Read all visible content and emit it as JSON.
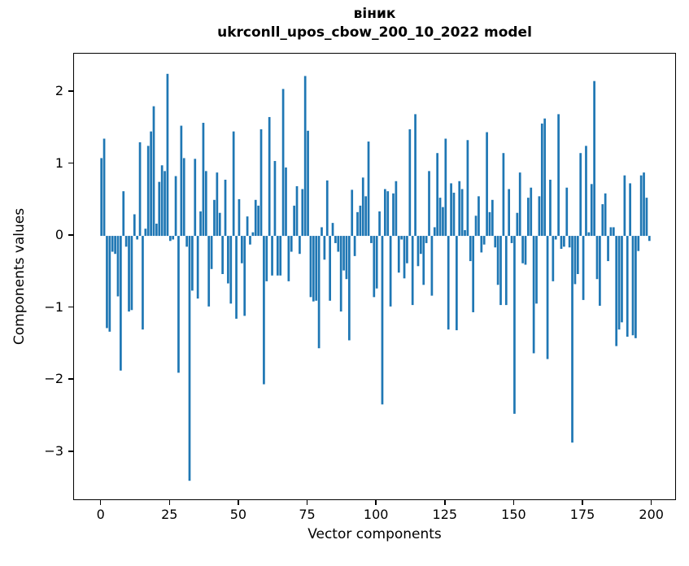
{
  "chart_data": {
    "type": "bar",
    "title": "віник",
    "subtitle": "ukrconll_upos_cbow_200_10_2022 model",
    "xlabel": "Vector components",
    "ylabel": "Components values",
    "bar_color": "#1f77b4",
    "n_components": 200,
    "x_start": 0,
    "xlim": [
      -9.95,
      208.95
    ],
    "ylim": [
      -3.68,
      2.53
    ],
    "bar_width": 0.8,
    "grid": "off",
    "legend": "none",
    "y_ticks": [
      {
        "v": 2,
        "label": "2"
      },
      {
        "v": 1,
        "label": "1"
      },
      {
        "v": 0,
        "label": "0"
      },
      {
        "v": -1,
        "label": "−1"
      },
      {
        "v": -2,
        "label": "−2"
      },
      {
        "v": -3,
        "label": "−3"
      }
    ],
    "x_ticks": [
      {
        "v": 0,
        "label": "0"
      },
      {
        "v": 25,
        "label": "25"
      },
      {
        "v": 50,
        "label": "50"
      },
      {
        "v": 75,
        "label": "75"
      },
      {
        "v": 100,
        "label": "100"
      },
      {
        "v": 125,
        "label": "125"
      },
      {
        "v": 150,
        "label": "150"
      },
      {
        "v": 175,
        "label": "175"
      },
      {
        "v": 200,
        "label": "200"
      }
    ],
    "values": [
      1.08,
      1.35,
      -1.28,
      -1.33,
      -0.22,
      -0.25,
      -0.84,
      -1.87,
      0.62,
      -0.15,
      -1.05,
      -1.03,
      0.3,
      -0.05,
      1.3,
      -1.3,
      0.1,
      1.25,
      1.45,
      1.8,
      0.17,
      0.75,
      0.98,
      0.9,
      2.25,
      -0.07,
      -0.05,
      0.83,
      -1.9,
      1.53,
      1.08,
      -0.15,
      -3.4,
      -0.76,
      1.07,
      -0.87,
      0.34,
      1.57,
      0.9,
      -0.98,
      -0.46,
      0.5,
      0.88,
      0.32,
      -0.53,
      0.78,
      -0.66,
      -0.94,
      1.45,
      -1.15,
      0.51,
      -0.38,
      -1.11,
      0.27,
      -0.12,
      0.05,
      0.5,
      0.42,
      1.48,
      -2.06,
      -0.63,
      1.65,
      -0.55,
      1.04,
      -0.55,
      -0.55,
      2.04,
      0.95,
      -0.63,
      -0.22,
      0.42,
      0.69,
      -0.25,
      0.65,
      2.22,
      1.46,
      -0.85,
      -0.91,
      -0.9,
      -1.56,
      0.12,
      -0.33,
      0.77,
      -0.9,
      0.18,
      -0.1,
      -0.22,
      -1.05,
      -0.48,
      -0.6,
      -1.45,
      0.64,
      -0.28,
      0.33,
      0.42,
      0.81,
      0.55,
      1.31,
      -0.1,
      -0.85,
      -0.73,
      0.34,
      -2.34,
      0.65,
      0.62,
      -0.98,
      0.59,
      0.76,
      -0.51,
      -0.05,
      -0.59,
      -0.38,
      1.48,
      -0.96,
      1.69,
      -0.42,
      -0.25,
      -0.68,
      -0.1,
      0.9,
      -0.83,
      0.12,
      1.15,
      0.53,
      0.4,
      1.35,
      -1.3,
      0.73,
      0.6,
      -1.31,
      0.76,
      0.65,
      0.08,
      1.33,
      -0.35,
      -1.06,
      0.28,
      0.55,
      -0.23,
      -0.12,
      1.44,
      0.33,
      0.5,
      -0.16,
      -0.68,
      -0.96,
      1.15,
      -0.96,
      0.65,
      -0.1,
      -2.47,
      0.32,
      0.88,
      -0.38,
      -0.4,
      0.53,
      0.67,
      -1.63,
      -0.94,
      0.55,
      1.56,
      1.63,
      -1.71,
      0.78,
      -0.63,
      -0.05,
      1.69,
      -0.18,
      -0.15,
      0.67,
      -0.16,
      -2.87,
      -0.67,
      -0.53,
      1.15,
      -0.89,
      1.25,
      0.05,
      0.72,
      2.15,
      -0.6,
      -0.97,
      0.44,
      0.59,
      -0.35,
      0.12,
      0.12,
      -1.53,
      -1.3,
      -1.2,
      0.84,
      -1.4,
      0.73,
      -1.38,
      -1.42,
      -0.21,
      0.84,
      0.88,
      0.53,
      -0.07
    ]
  }
}
